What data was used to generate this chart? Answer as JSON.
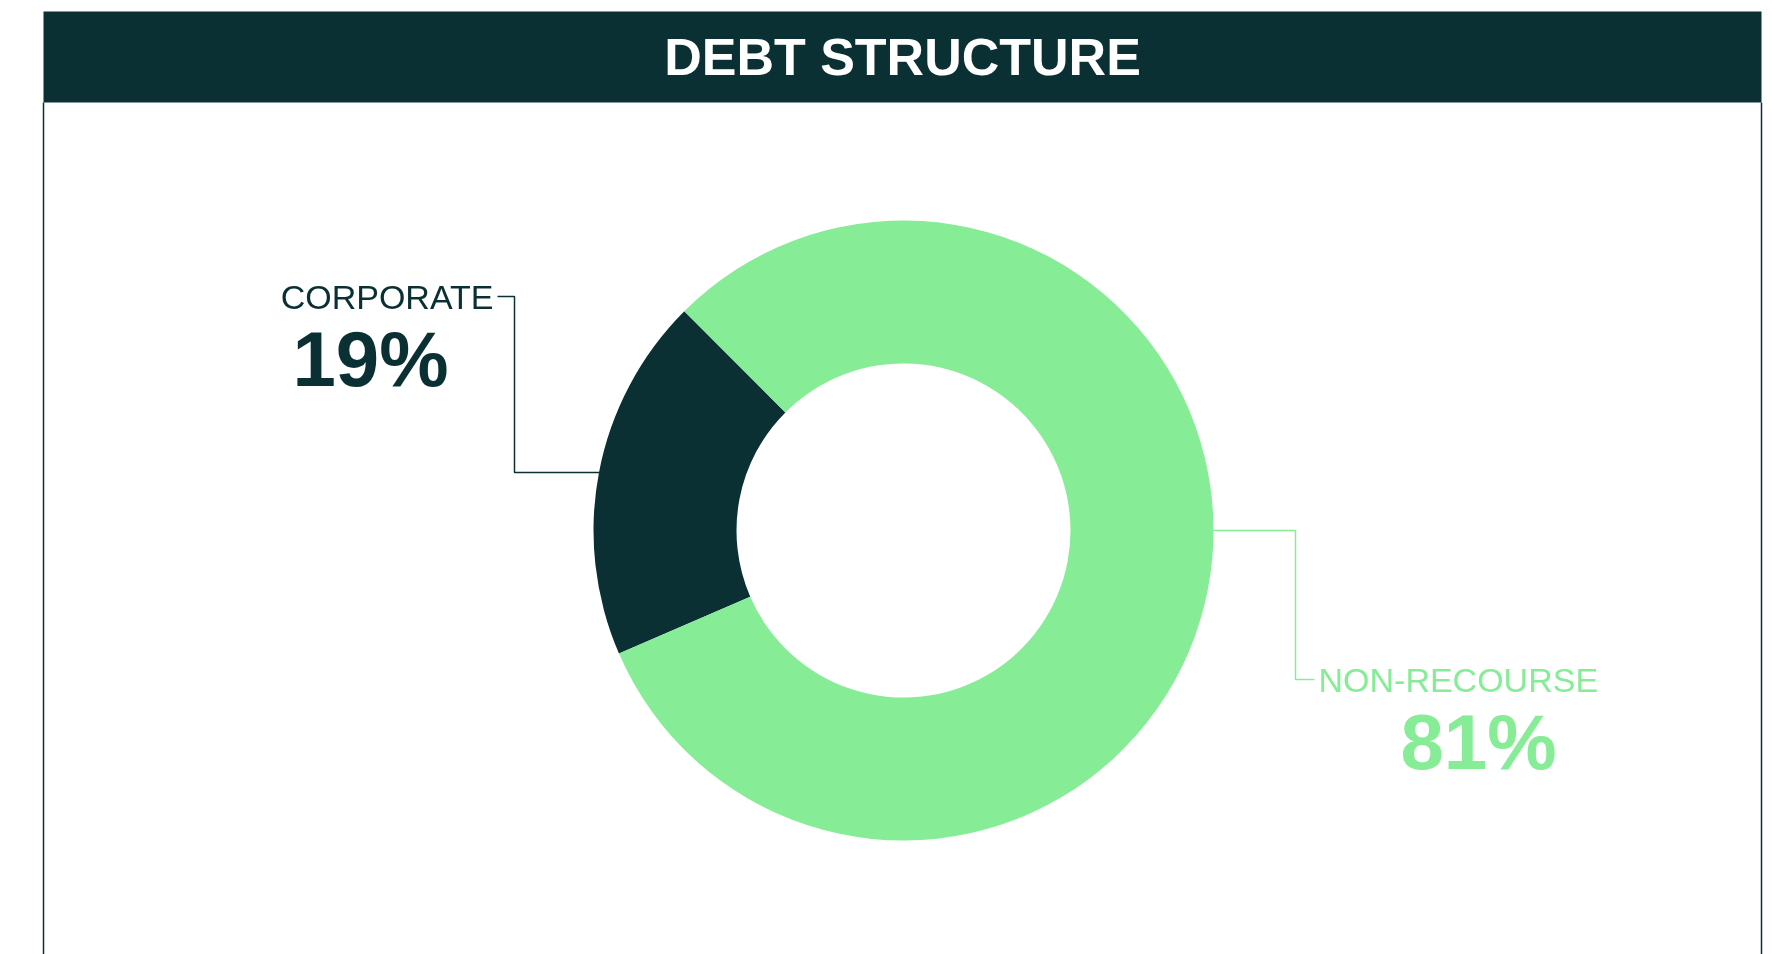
{
  "chart_data": {
    "type": "donut",
    "title": "DEBT STRUCTURE",
    "categories": [
      "CORPORATE",
      "NON-RECOURSE"
    ],
    "values": [
      19,
      81
    ],
    "value_labels": [
      "19%",
      "81%"
    ],
    "colors": [
      "#0a3033",
      "#86ed96"
    ]
  }
}
